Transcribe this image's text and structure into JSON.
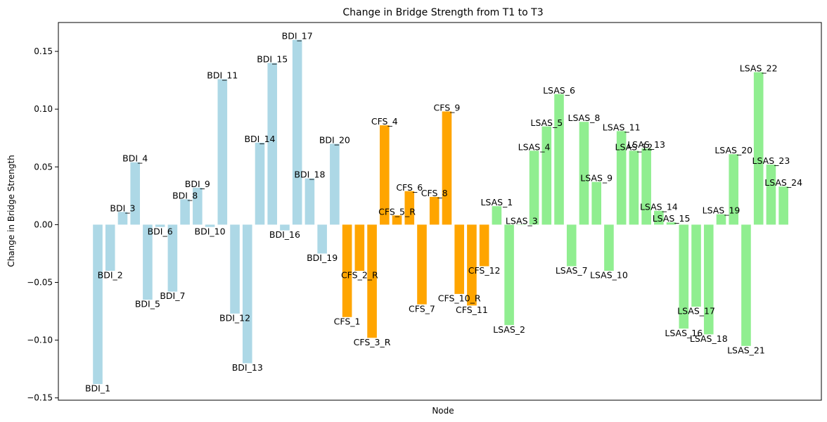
{
  "chart_data": {
    "type": "bar",
    "title": "Change in Bridge Strength from T1 to T3",
    "xlabel": "Node",
    "ylabel": "Change in Bridge Strength",
    "ylim": [
      -0.152,
      0.175
    ],
    "yticks": [
      -0.15,
      -0.1,
      -0.05,
      0.0,
      0.05,
      0.1,
      0.15
    ],
    "ytick_labels": [
      "−0.15",
      "−0.10",
      "−0.05",
      "0.00",
      "0.05",
      "0.10",
      "0.15"
    ],
    "grid": false,
    "colors": {
      "BDI": "#add8e6",
      "CFS": "#ffa500",
      "LSAS": "#90ee90"
    },
    "bars": [
      {
        "label": "BDI_1",
        "value": -0.138,
        "group": "BDI"
      },
      {
        "label": "BDI_2",
        "value": -0.04,
        "group": "BDI"
      },
      {
        "label": "BDI_3",
        "value": 0.011,
        "group": "BDI"
      },
      {
        "label": "BDI_4",
        "value": 0.054,
        "group": "BDI"
      },
      {
        "label": "BDI_5",
        "value": -0.065,
        "group": "BDI"
      },
      {
        "label": "BDI_6",
        "value": -0.002,
        "group": "BDI"
      },
      {
        "label": "BDI_7",
        "value": -0.058,
        "group": "BDI"
      },
      {
        "label": "BDI_8",
        "value": 0.022,
        "group": "BDI"
      },
      {
        "label": "BDI_9",
        "value": 0.032,
        "group": "BDI"
      },
      {
        "label": "BDI_10",
        "value": -0.002,
        "group": "BDI"
      },
      {
        "label": "BDI_11",
        "value": 0.126,
        "group": "BDI"
      },
      {
        "label": "BDI_12",
        "value": -0.077,
        "group": "BDI"
      },
      {
        "label": "BDI_13",
        "value": -0.12,
        "group": "BDI"
      },
      {
        "label": "BDI_14",
        "value": 0.071,
        "group": "BDI"
      },
      {
        "label": "BDI_15",
        "value": 0.14,
        "group": "BDI"
      },
      {
        "label": "BDI_16",
        "value": -0.005,
        "group": "BDI"
      },
      {
        "label": "BDI_17",
        "value": 0.16,
        "group": "BDI"
      },
      {
        "label": "BDI_18",
        "value": 0.04,
        "group": "BDI"
      },
      {
        "label": "BDI_19",
        "value": -0.025,
        "group": "BDI"
      },
      {
        "label": "BDI_20",
        "value": 0.07,
        "group": "BDI"
      },
      {
        "label": "CFS_1",
        "value": -0.08,
        "group": "CFS"
      },
      {
        "label": "CFS_2_R",
        "value": -0.04,
        "group": "CFS"
      },
      {
        "label": "CFS_3_R",
        "value": -0.098,
        "group": "CFS"
      },
      {
        "label": "CFS_4",
        "value": 0.086,
        "group": "CFS"
      },
      {
        "label": "CFS_5_R",
        "value": 0.008,
        "group": "CFS"
      },
      {
        "label": "CFS_6",
        "value": 0.029,
        "group": "CFS"
      },
      {
        "label": "CFS_7",
        "value": -0.069,
        "group": "CFS"
      },
      {
        "label": "CFS_8",
        "value": 0.024,
        "group": "CFS"
      },
      {
        "label": "CFS_9",
        "value": 0.098,
        "group": "CFS"
      },
      {
        "label": "CFS_10_R",
        "value": -0.06,
        "group": "CFS"
      },
      {
        "label": "CFS_11",
        "value": -0.07,
        "group": "CFS"
      },
      {
        "label": "CFS_12",
        "value": -0.036,
        "group": "CFS"
      },
      {
        "label": "LSAS_1",
        "value": 0.016,
        "group": "LSAS"
      },
      {
        "label": "LSAS_2",
        "value": -0.087,
        "group": "LSAS"
      },
      {
        "label": "LSAS_3",
        "value": 0.0,
        "group": "LSAS"
      },
      {
        "label": "LSAS_4",
        "value": 0.064,
        "group": "LSAS"
      },
      {
        "label": "LSAS_5",
        "value": 0.085,
        "group": "LSAS"
      },
      {
        "label": "LSAS_6",
        "value": 0.113,
        "group": "LSAS"
      },
      {
        "label": "LSAS_7",
        "value": -0.036,
        "group": "LSAS"
      },
      {
        "label": "LSAS_8",
        "value": 0.089,
        "group": "LSAS"
      },
      {
        "label": "LSAS_9",
        "value": 0.037,
        "group": "LSAS"
      },
      {
        "label": "LSAS_10",
        "value": -0.04,
        "group": "LSAS"
      },
      {
        "label": "LSAS_11",
        "value": 0.081,
        "group": "LSAS"
      },
      {
        "label": "LSAS_12",
        "value": 0.064,
        "group": "LSAS"
      },
      {
        "label": "LSAS_13",
        "value": 0.066,
        "group": "LSAS"
      },
      {
        "label": "LSAS_14",
        "value": 0.012,
        "group": "LSAS"
      },
      {
        "label": "LSAS_15",
        "value": 0.002,
        "group": "LSAS"
      },
      {
        "label": "LSAS_16",
        "value": -0.09,
        "group": "LSAS"
      },
      {
        "label": "LSAS_17",
        "value": -0.071,
        "group": "LSAS"
      },
      {
        "label": "LSAS_18",
        "value": -0.095,
        "group": "LSAS"
      },
      {
        "label": "LSAS_19",
        "value": 0.009,
        "group": "LSAS"
      },
      {
        "label": "LSAS_20",
        "value": 0.061,
        "group": "LSAS"
      },
      {
        "label": "LSAS_21",
        "value": -0.105,
        "group": "LSAS"
      },
      {
        "label": "LSAS_22",
        "value": 0.132,
        "group": "LSAS"
      },
      {
        "label": "LSAS_23",
        "value": 0.052,
        "group": "LSAS"
      },
      {
        "label": "LSAS_24",
        "value": 0.033,
        "group": "LSAS"
      }
    ]
  }
}
